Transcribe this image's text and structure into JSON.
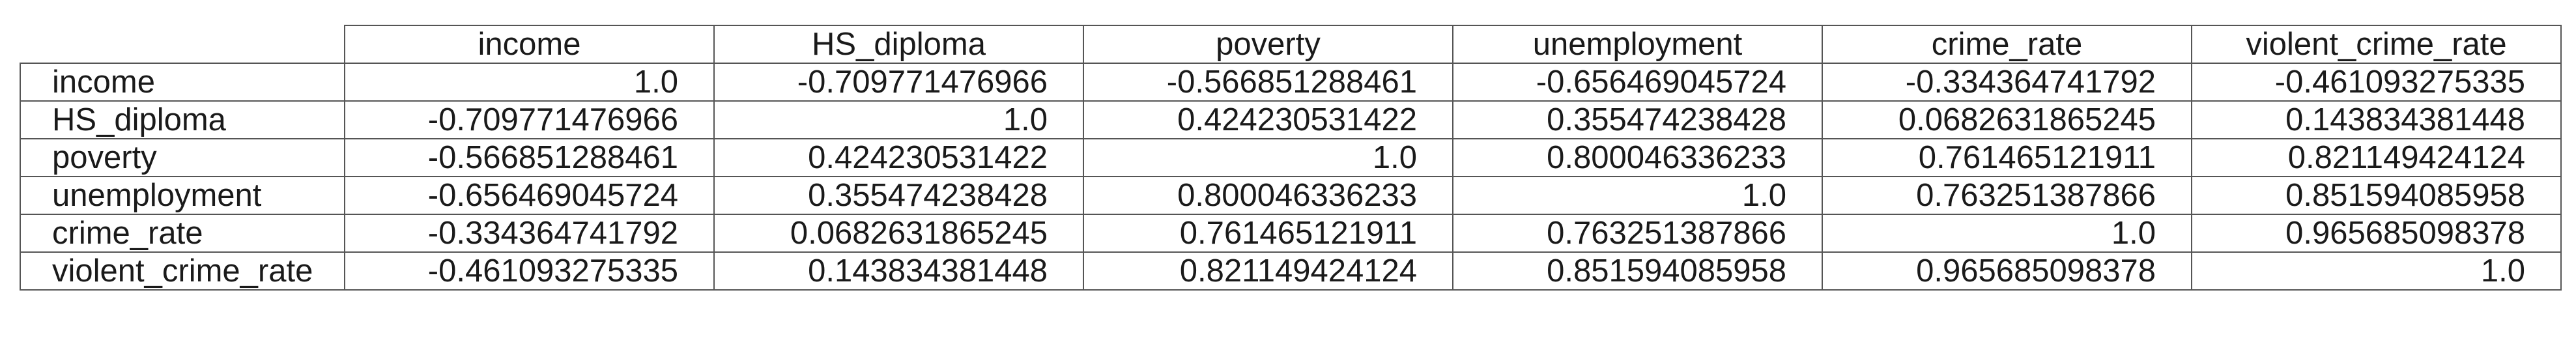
{
  "table": {
    "columns": [
      "income",
      "HS_diploma",
      "poverty",
      "unemployment",
      "crime_rate",
      "violent_crime_rate"
    ],
    "rows": [
      {
        "label": "income",
        "values": [
          "1.0",
          "-0.709771476966",
          "-0.566851288461",
          "-0.656469045724",
          "-0.334364741792",
          "-0.461093275335"
        ]
      },
      {
        "label": "HS_diploma",
        "values": [
          "-0.709771476966",
          "1.0",
          "0.424230531422",
          "0.355474238428",
          "0.0682631865245",
          "0.143834381448"
        ]
      },
      {
        "label": "poverty",
        "values": [
          "-0.566851288461",
          "0.424230531422",
          "1.0",
          "0.800046336233",
          "0.761465121911",
          "0.821149424124"
        ]
      },
      {
        "label": "unemployment",
        "values": [
          "-0.656469045724",
          "0.355474238428",
          "0.800046336233",
          "1.0",
          "0.763251387866",
          "0.851594085958"
        ]
      },
      {
        "label": "crime_rate",
        "values": [
          "-0.334364741792",
          "0.0682631865245",
          "0.761465121911",
          "0.763251387866",
          "1.0",
          "0.965685098378"
        ]
      },
      {
        "label": "violent_crime_rate",
        "values": [
          "-0.461093275335",
          "0.143834381448",
          "0.821149424124",
          "0.851594085958",
          "0.965685098378",
          "1.0"
        ]
      }
    ]
  }
}
